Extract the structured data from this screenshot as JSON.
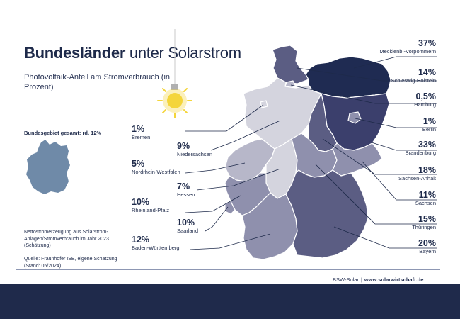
{
  "header": {
    "title_bold": "Bundesländer",
    "title_rest": "unter Solarstrom",
    "subtitle": "Photovoltaik-Anteil am Stromverbrauch (in Prozent)"
  },
  "sidebar": {
    "total": "Bundesgebiet gesamt: rd. 12%",
    "note": "Nettostromerzeugung aus Solarstrom-Anlagen/Stromverbrauch im Jahr 2023 (Schätzung)",
    "source": "Quelle: Fraunhofer ISE, eigene Schätzung (Stand: 05/2024)"
  },
  "footer": {
    "org": "BSW-Solar",
    "sep": "|",
    "url": "www.solarwirtschaft.de"
  },
  "colors": {
    "navy": "#1e2a4a",
    "footer_band": "#1f2a4b",
    "germany_total": "#6f8aa8",
    "bulb": "#f4d53b",
    "shade_darkest": "#1f2b52",
    "shade_dark": "#3b3f6c",
    "shade_mid": "#5b5d83",
    "shade_light": "#8f90ad",
    "shade_lighter": "#b7b7c9",
    "shade_lightest": "#d4d4de"
  },
  "icons": [
    "lightbulb-icon",
    "germany-silhouette-icon"
  ],
  "chart_data": {
    "type": "choropleth",
    "unit": "%",
    "categories": [
      "Mecklenb.-Vorpommern",
      "Schleswig-Holstein",
      "Hamburg",
      "Berlin",
      "Brandenburg",
      "Sachsen-Anhalt",
      "Sachsen",
      "Thüringen",
      "Bayern",
      "Bremen",
      "Niedersachsen",
      "Nordrhein-Westfalen",
      "Hessen",
      "Rheinland-Pfalz",
      "Saarland",
      "Baden-Württemberg"
    ],
    "values": [
      37,
      14,
      0.5,
      1,
      33,
      18,
      11,
      15,
      20,
      1,
      9,
      5,
      7,
      10,
      10,
      12
    ],
    "labels": [
      "37%",
      "14%",
      "0,5%",
      "1%",
      "33%",
      "18%",
      "11%",
      "15%",
      "20%",
      "1%",
      "9%",
      "5%",
      "7%",
      "10%",
      "10%",
      "12%"
    ],
    "national_total_label": "rd. 12%"
  }
}
